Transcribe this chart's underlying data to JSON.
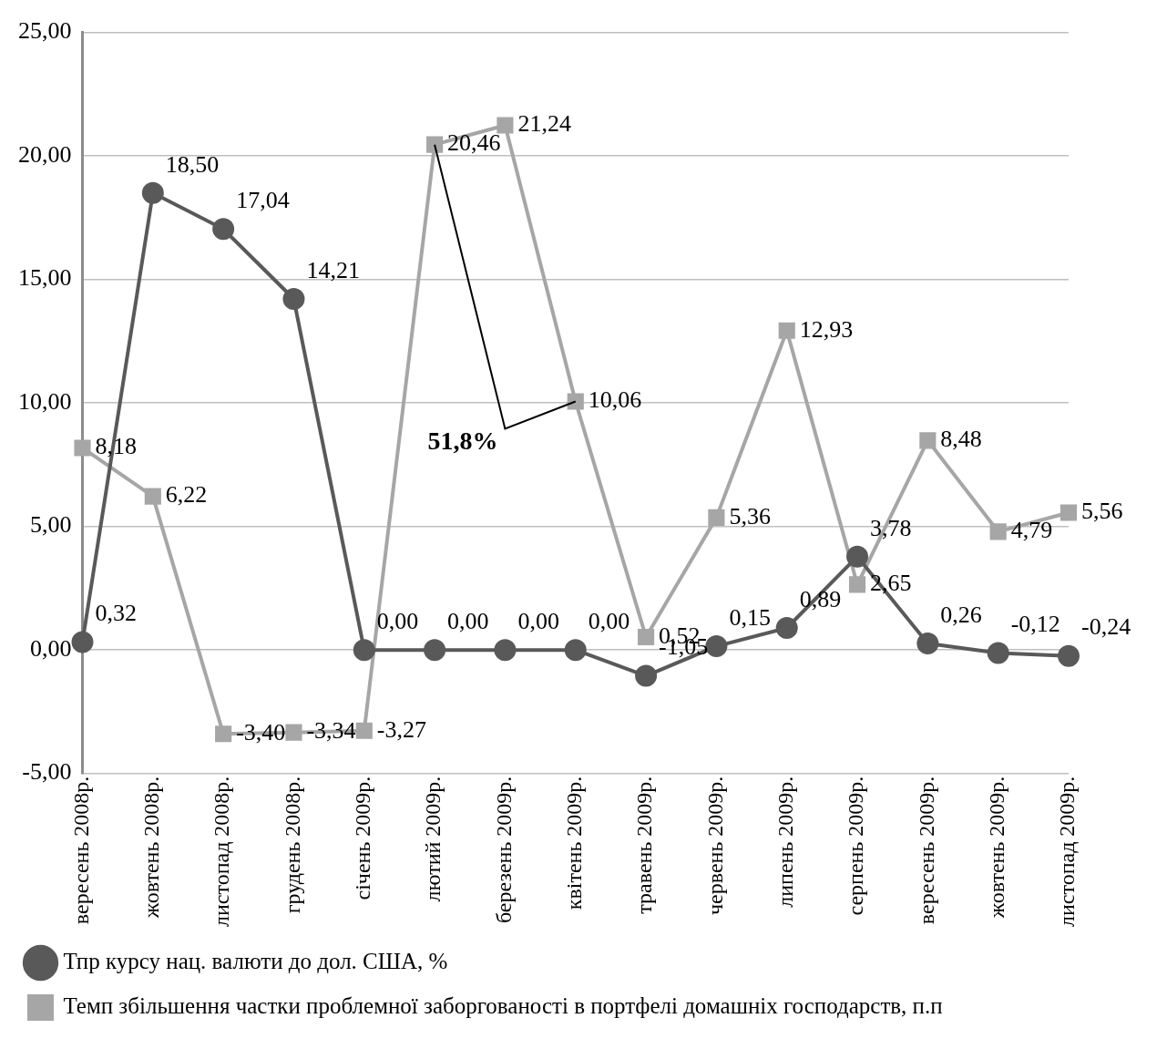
{
  "chart_data": {
    "type": "line",
    "categories": [
      "вересень 2008р.",
      "жовтень 2008р.",
      "листопад 2008р.",
      "грудень 2008р.",
      "січень 2009р.",
      "лютий 2009р.",
      "березень 2009р.",
      "квітень 2009р.",
      "травень 2009р.",
      "червень 2009р.",
      "липень 2009р.",
      "серпень 2009р.",
      "вересень 2009р.",
      "жовтень 2009р.",
      "листопад 2009р."
    ],
    "series": [
      {
        "name": "Тпр курсу нац. валюти до дол. США, %",
        "color": "#595959",
        "marker": "circle",
        "values": [
          0.32,
          18.5,
          17.04,
          14.21,
          0,
          0,
          0,
          0,
          -1.05,
          0.15,
          0.89,
          3.78,
          0.26,
          -0.12,
          -0.24
        ],
        "value_labels": [
          "0,32",
          "18,50",
          "17,04",
          "14,21",
          "0,00",
          "0,00",
          "0,00",
          "0,00",
          "-1,05",
          "0,15",
          "0,89",
          "3,78",
          "0,26",
          "-0,12",
          "-0,24"
        ]
      },
      {
        "name": "Темп збільшення частки проблемної заборгованості в портфелі домашніх господарств, п.п",
        "color": "#a6a6a6",
        "marker": "square",
        "values": [
          8.18,
          6.22,
          -3.4,
          -3.34,
          -3.27,
          20.46,
          21.24,
          10.06,
          0.52,
          5.36,
          12.93,
          2.65,
          8.48,
          4.79,
          5.56
        ],
        "value_labels": [
          "8,18",
          "6,22",
          "-3,40",
          "-3,34",
          "-3,27",
          "20,46",
          "21,24",
          "10,06",
          "0,52",
          "5,36",
          "12,93",
          "2,65",
          "8,48",
          "4,79",
          "5,56"
        ]
      }
    ],
    "ylim": [
      -5,
      25
    ],
    "yticks": [
      {
        "value": -5,
        "label": "-5,00"
      },
      {
        "value": 0,
        "label": "0,00"
      },
      {
        "value": 5,
        "label": "5,00"
      },
      {
        "value": 10,
        "label": "10,00"
      },
      {
        "value": 15,
        "label": "15,00"
      },
      {
        "value": 20,
        "label": "20,00"
      },
      {
        "value": 25,
        "label": "25,00"
      }
    ],
    "grid": "y",
    "legend": "bottom",
    "line_style": "solid",
    "annotations": [
      "51,8%"
    ]
  }
}
